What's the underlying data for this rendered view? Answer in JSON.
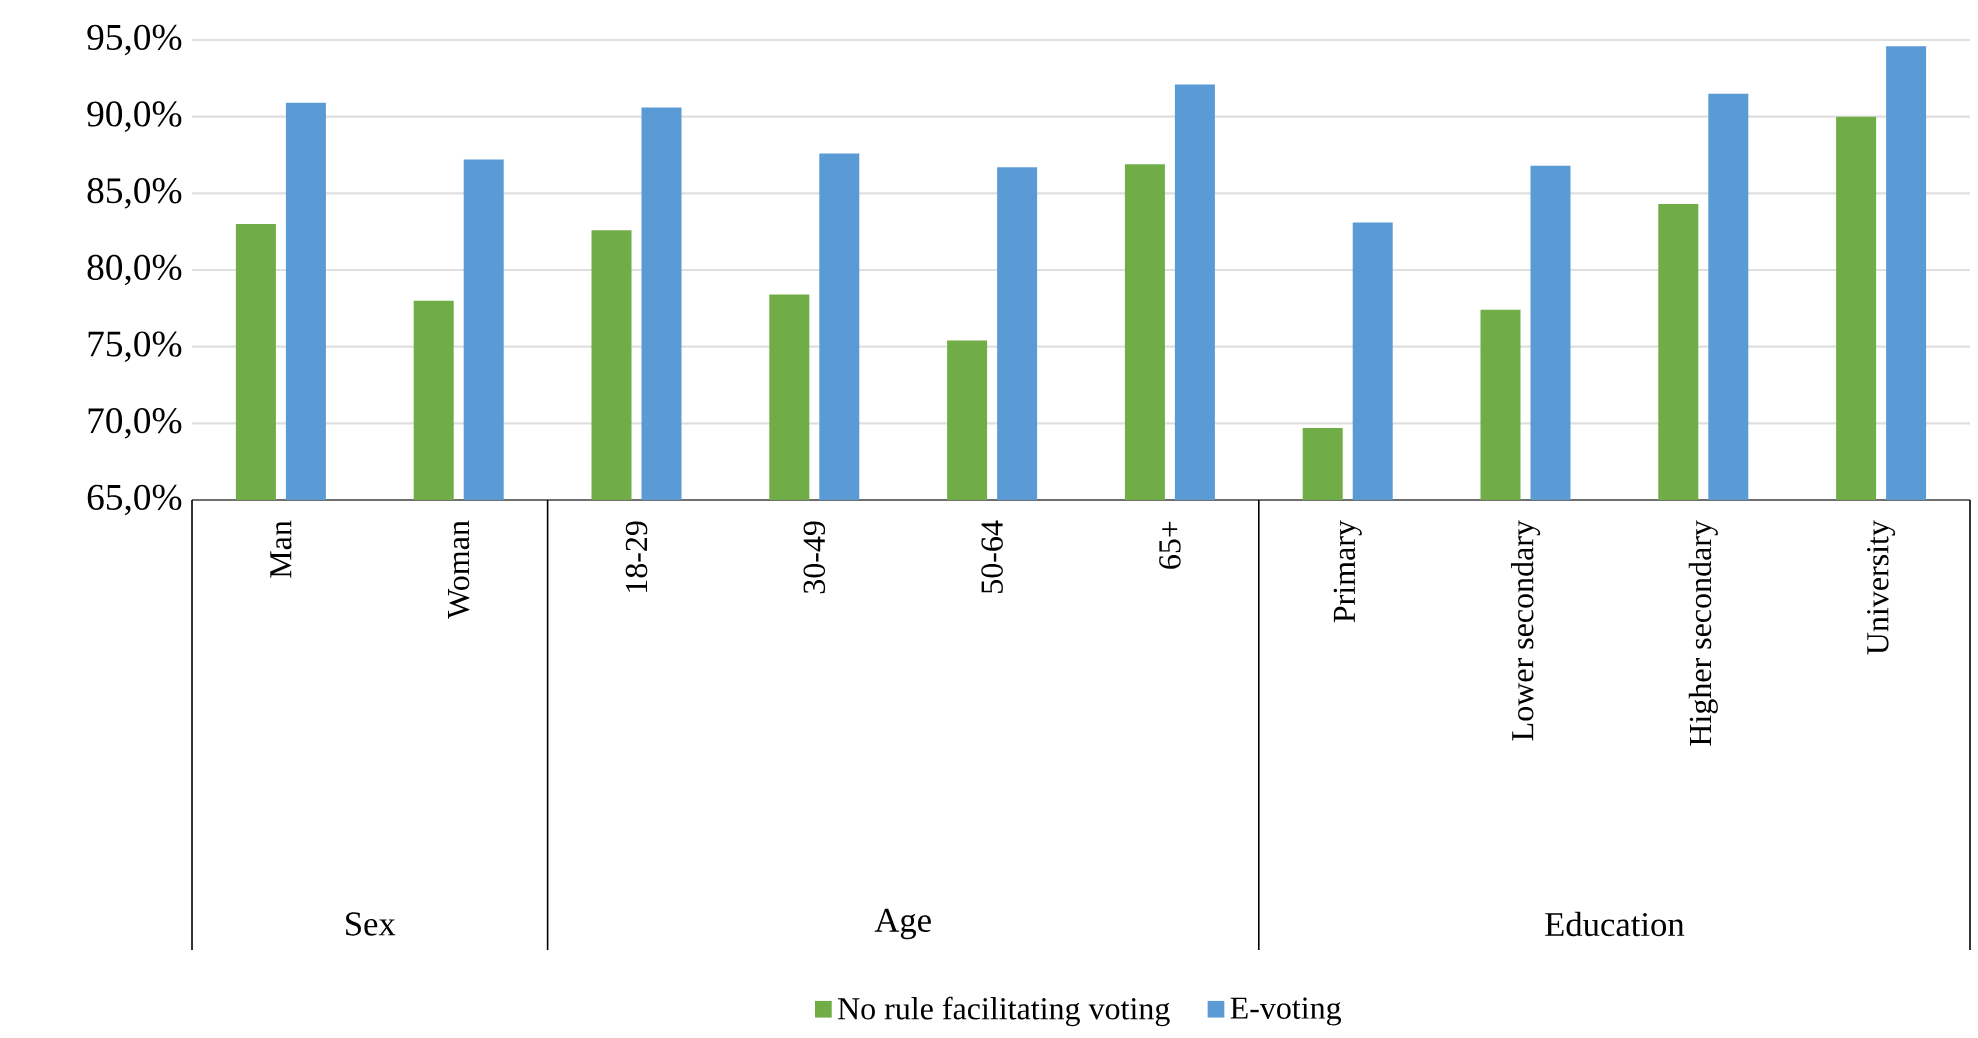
{
  "chart_data": {
    "type": "bar",
    "categories": [
      "Man",
      "Woman",
      "18-29",
      "30-49",
      "50-64",
      "65+",
      "Primary",
      "Lower secondary",
      "Higher secondary",
      "University"
    ],
    "series": [
      {
        "name": "No rule facilitating voting",
        "color": "#70ad47",
        "values": [
          83.0,
          78.0,
          82.6,
          78.4,
          75.4,
          86.9,
          69.7,
          77.4,
          84.3,
          90.0
        ]
      },
      {
        "name": "E-voting",
        "color": "#5b9bd5",
        "values": [
          90.9,
          87.2,
          90.6,
          87.6,
          86.7,
          92.1,
          83.1,
          86.8,
          91.5,
          94.6
        ]
      }
    ],
    "annotations": [
      "Sex",
      "Age",
      "Education"
    ],
    "ylim": [
      65,
      95
    ],
    "yticks": [
      {
        "value": 65,
        "label": "65,0%"
      },
      {
        "value": 70,
        "label": "70,0%"
      },
      {
        "value": 75,
        "label": "75,0%"
      },
      {
        "value": 80,
        "label": "80,0%"
      },
      {
        "value": 85,
        "label": "85,0%"
      },
      {
        "value": 90,
        "label": "90,0%"
      },
      {
        "value": 95,
        "label": "95,0%"
      }
    ],
    "grid": "y",
    "legend": "bottom"
  }
}
